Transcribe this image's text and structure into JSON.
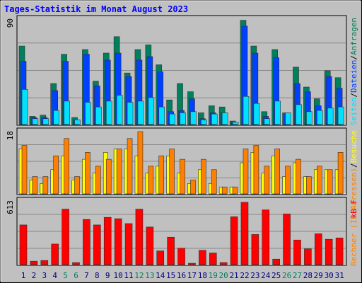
{
  "chart_data": [
    {
      "type": "bar",
      "title": "Tages-Statistik im Monat August 2023",
      "ylim": [
        0,
        90
      ],
      "grid": true,
      "legend_separator": "/",
      "series": [
        {
          "name": "Anfragen",
          "color": "#00805c",
          "values": [
            67,
            7,
            8,
            35,
            60,
            6,
            64,
            37,
            61,
            75,
            44,
            64,
            68,
            51,
            21,
            35,
            28,
            10,
            16,
            15,
            3,
            89,
            67,
            11,
            64,
            10,
            49,
            32,
            22,
            46,
            40
          ]
        },
        {
          "name": "Dateien",
          "color": "#0040ff",
          "values": [
            54,
            6,
            6,
            29,
            54,
            4,
            60,
            33,
            55,
            61,
            41,
            55,
            58,
            45,
            11,
            12,
            22,
            5,
            10,
            10,
            2,
            84,
            61,
            7,
            57,
            9,
            35,
            28,
            16,
            41,
            31
          ]
        },
        {
          "name": "Seiten",
          "color": "#00e0ff",
          "values": [
            30,
            5,
            5,
            12,
            20,
            4,
            19,
            15,
            20,
            25,
            19,
            20,
            23,
            15,
            9,
            10,
            11,
            4,
            9,
            10,
            2,
            24,
            18,
            5,
            20,
            10,
            17,
            11,
            12,
            14,
            15
          ]
        }
      ]
    },
    {
      "type": "bar",
      "ylim": [
        0,
        18
      ],
      "grid": true,
      "legend_separator": "/",
      "series": [
        {
          "name": "Besuche",
          "color": "#ffff00",
          "values": [
            13,
            4,
            3,
            7,
            11,
            4,
            10,
            6,
            12,
            13,
            13,
            11,
            6,
            8,
            11,
            6,
            3,
            7,
            3,
            2,
            2,
            9,
            12,
            6,
            11,
            5,
            9,
            5,
            7,
            7,
            7
          ]
        },
        {
          "name": "Rechner (IP-Adressen)",
          "color": "#ff8000",
          "values": [
            14,
            5,
            5,
            11,
            16,
            5,
            12,
            8,
            10,
            13,
            16,
            18,
            8,
            11,
            13,
            10,
            4,
            10,
            7,
            2,
            2,
            13,
            14,
            8,
            13,
            8,
            10,
            5,
            8,
            7,
            12
          ]
        }
      ]
    },
    {
      "type": "bar",
      "ylim": [
        0,
        613
      ],
      "grid": true,
      "categories": [
        "1",
        "2",
        "3",
        "4",
        "5",
        "6",
        "7",
        "8",
        "9",
        "10",
        "11",
        "12",
        "13",
        "14",
        "15",
        "16",
        "17",
        "18",
        "19",
        "20",
        "21",
        "22",
        "23",
        "24",
        "25",
        "26",
        "27",
        "28",
        "29",
        "30",
        "31"
      ],
      "category_colors": [
        "#000080",
        "#000080",
        "#000080",
        "#000080",
        "#008060",
        "#008060",
        "#000080",
        "#000080",
        "#000080",
        "#000080",
        "#000080",
        "#008060",
        "#008060",
        "#000080",
        "#000080",
        "#000080",
        "#000080",
        "#000080",
        "#008060",
        "#008060",
        "#000080",
        "#000080",
        "#000080",
        "#000080",
        "#000080",
        "#008060",
        "#008060",
        "#000080",
        "#000080",
        "#000080",
        "#000080"
      ],
      "series": [
        {
          "name": "kB F",
          "color": "#ff0000",
          "values": [
            382,
            33,
            40,
            198,
            534,
            20,
            435,
            382,
            455,
            442,
            395,
            534,
            362,
            132,
            264,
            158,
            13,
            138,
            112,
            20,
            461,
            600,
            290,
            527,
            53,
            488,
            237,
            152,
            297,
            244,
            257
          ]
        }
      ]
    }
  ]
}
